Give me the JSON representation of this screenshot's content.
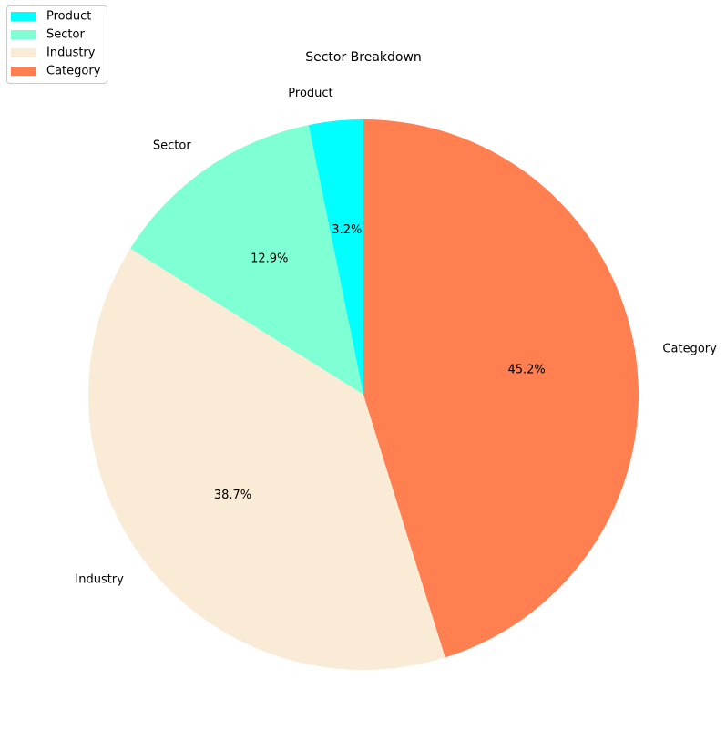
{
  "chart_data": {
    "type": "pie",
    "title": "Sector Breakdown",
    "categories": [
      "Product",
      "Sector",
      "Industry",
      "Category"
    ],
    "values": [
      3.2,
      12.9,
      38.7,
      45.2
    ],
    "percent_labels": [
      "3.2%",
      "12.9%",
      "38.7%",
      "45.2%"
    ],
    "colors": [
      "#00ffff",
      "#7fffd4",
      "#faebd7",
      "#ff7f50"
    ],
    "start_angle_deg": 90,
    "direction": "counterclockwise",
    "legend": {
      "placement": "top-left",
      "entries": [
        "Product",
        "Sector",
        "Industry",
        "Category"
      ]
    }
  }
}
